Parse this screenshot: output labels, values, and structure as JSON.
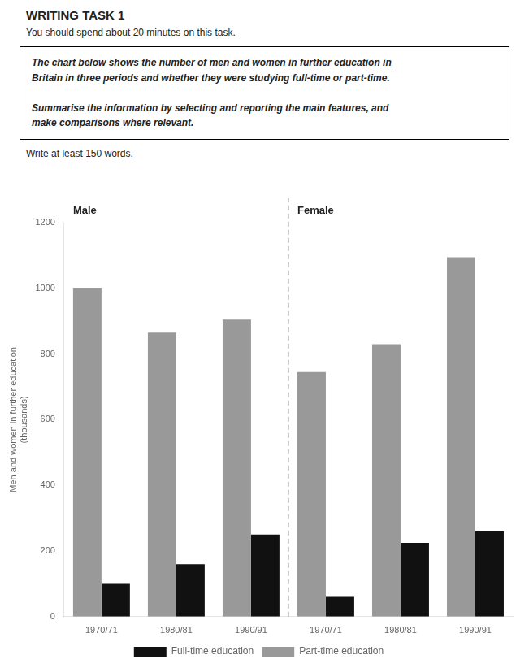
{
  "chart_data": {
    "type": "bar",
    "title": "WRITING TASK 1",
    "subtitle": "You should spend about 20 minutes on this task.",
    "annotations": {
      "instructions": "The chart below shows the number of men and women in further education in\nBritain in three periods and whether they were studying full-time or part-time.\n\nSummarise the information by selecting and reporting the main features, and\nmake comparisons where relevant.",
      "note": "Write at least 150 words.",
      "groups": [
        "Male",
        "Female"
      ]
    },
    "ylabel": [
      "Men and women in further education",
      "(thousands)"
    ],
    "categories": [
      "1970/71",
      "1980/81",
      "1990/91",
      "1970/71",
      "1980/81",
      "1990/91"
    ],
    "series": [
      {
        "name": "Part-time education",
        "color": "#999999",
        "values": [
          1000,
          865,
          905,
          745,
          830,
          1095
        ]
      },
      {
        "name": "Full-time education",
        "color": "#111111",
        "values": [
          100,
          160,
          250,
          60,
          225,
          260
        ]
      }
    ],
    "ylim": [
      0,
      1200
    ],
    "yticks": [
      0,
      200,
      400,
      600,
      800,
      1000,
      1200
    ],
    "grid": false,
    "legend": "bottom"
  }
}
